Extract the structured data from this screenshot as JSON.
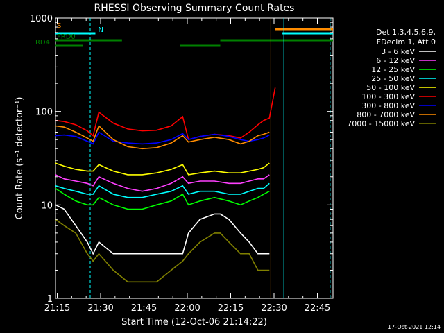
{
  "chart_data": {
    "type": "line",
    "title": "RHESSI Observing Summary Count Rates",
    "xlabel": "Start Time (12-Oct-06 21:14:22)",
    "ylabel": "Count Rate (s⁻¹ detector⁻¹)",
    "x_unit": "minutes after 21:14:22",
    "xlim": [
      0,
      96
    ],
    "ylim": [
      1,
      1000
    ],
    "y_scale": "log",
    "grid": false,
    "legend_position": "right",
    "x_ticks": [
      {
        "label": "21:15",
        "value": 0.6
      },
      {
        "label": "21:30",
        "value": 15.6
      },
      {
        "label": "21:45",
        "value": 30.6
      },
      {
        "label": "22:00",
        "value": 45.6
      },
      {
        "label": "22:15",
        "value": 60.6
      },
      {
        "label": "22:30",
        "value": 75.6
      },
      {
        "label": "22:45",
        "value": 90.6
      }
    ],
    "y_ticks": [
      {
        "label": "1",
        "value": 1
      },
      {
        "label": "10",
        "value": 10
      },
      {
        "label": "100",
        "value": 100
      },
      {
        "label": "1000",
        "value": 1000
      }
    ],
    "legend_header": [
      "Det 1,3,4,5,6,9,",
      "FDecim 1, Att 0"
    ],
    "series": [
      {
        "name": "3 - 6 keV",
        "color": "#ffffff",
        "points": [
          [
            0,
            10
          ],
          [
            3,
            9
          ],
          [
            7,
            6
          ],
          [
            11,
            4
          ],
          [
            13,
            3
          ],
          [
            15,
            4
          ],
          [
            20,
            3
          ],
          [
            25,
            3
          ],
          [
            30,
            3
          ],
          [
            35,
            3
          ],
          [
            40,
            3
          ],
          [
            44,
            3
          ],
          [
            46,
            5
          ],
          [
            50,
            7
          ],
          [
            55,
            8
          ],
          [
            57,
            8
          ],
          [
            60,
            7
          ],
          [
            64,
            5
          ],
          [
            67,
            4
          ],
          [
            70,
            3
          ],
          [
            72,
            3
          ],
          [
            74,
            3
          ]
        ]
      },
      {
        "name": "6 - 12 keV",
        "color": "#ff40ff",
        "points": [
          [
            0,
            21
          ],
          [
            3,
            19
          ],
          [
            7,
            18
          ],
          [
            11,
            17
          ],
          [
            13,
            16
          ],
          [
            15,
            20
          ],
          [
            20,
            17
          ],
          [
            25,
            15
          ],
          [
            30,
            14
          ],
          [
            35,
            15
          ],
          [
            40,
            17
          ],
          [
            44,
            20
          ],
          [
            46,
            17
          ],
          [
            50,
            18
          ],
          [
            55,
            18
          ],
          [
            60,
            17
          ],
          [
            64,
            17
          ],
          [
            67,
            18
          ],
          [
            70,
            19
          ],
          [
            72,
            19
          ],
          [
            74,
            21
          ]
        ]
      },
      {
        "name": "12 - 25 keV",
        "color": "#00ff00",
        "points": [
          [
            0,
            15
          ],
          [
            3,
            13
          ],
          [
            7,
            11
          ],
          [
            11,
            10
          ],
          [
            13,
            10
          ],
          [
            15,
            12
          ],
          [
            20,
            10
          ],
          [
            25,
            9
          ],
          [
            30,
            9
          ],
          [
            35,
            10
          ],
          [
            40,
            11
          ],
          [
            44,
            13
          ],
          [
            46,
            10
          ],
          [
            50,
            11
          ],
          [
            55,
            12
          ],
          [
            60,
            11
          ],
          [
            64,
            10
          ],
          [
            67,
            11
          ],
          [
            70,
            12
          ],
          [
            72,
            13
          ],
          [
            74,
            14
          ]
        ]
      },
      {
        "name": "25 - 50 keV",
        "color": "#00ffff",
        "points": [
          [
            0,
            16
          ],
          [
            3,
            15
          ],
          [
            7,
            14
          ],
          [
            11,
            13
          ],
          [
            13,
            13
          ],
          [
            15,
            16
          ],
          [
            20,
            13
          ],
          [
            25,
            12
          ],
          [
            30,
            12
          ],
          [
            35,
            13
          ],
          [
            40,
            14
          ],
          [
            44,
            16
          ],
          [
            46,
            13
          ],
          [
            50,
            14
          ],
          [
            55,
            14
          ],
          [
            60,
            13
          ],
          [
            64,
            13
          ],
          [
            67,
            14
          ],
          [
            70,
            15
          ],
          [
            72,
            15
          ],
          [
            74,
            17
          ]
        ]
      },
      {
        "name": "50 - 100 keV",
        "color": "#ffff00",
        "points": [
          [
            0,
            28
          ],
          [
            3,
            26
          ],
          [
            7,
            24
          ],
          [
            11,
            23
          ],
          [
            13,
            23
          ],
          [
            15,
            27
          ],
          [
            20,
            23
          ],
          [
            25,
            21
          ],
          [
            30,
            21
          ],
          [
            35,
            22
          ],
          [
            40,
            24
          ],
          [
            44,
            27
          ],
          [
            46,
            21
          ],
          [
            50,
            22
          ],
          [
            55,
            23
          ],
          [
            60,
            22
          ],
          [
            64,
            22
          ],
          [
            67,
            23
          ],
          [
            70,
            24
          ],
          [
            72,
            25
          ],
          [
            74,
            28
          ]
        ]
      },
      {
        "name": "100 - 300 keV",
        "color": "#ff0000",
        "points": [
          [
            0,
            80
          ],
          [
            3,
            78
          ],
          [
            7,
            72
          ],
          [
            11,
            62
          ],
          [
            13,
            55
          ],
          [
            15,
            98
          ],
          [
            20,
            75
          ],
          [
            25,
            65
          ],
          [
            30,
            62
          ],
          [
            35,
            63
          ],
          [
            40,
            70
          ],
          [
            44,
            88
          ],
          [
            46,
            50
          ],
          [
            50,
            54
          ],
          [
            55,
            57
          ],
          [
            60,
            55
          ],
          [
            64,
            52
          ],
          [
            67,
            60
          ],
          [
            70,
            72
          ],
          [
            72,
            80
          ],
          [
            74,
            85
          ],
          [
            76,
            180
          ]
        ]
      },
      {
        "name": "300 - 800 keV",
        "color": "#0000ff",
        "points": [
          [
            0,
            55
          ],
          [
            3,
            56
          ],
          [
            7,
            54
          ],
          [
            11,
            48
          ],
          [
            13,
            45
          ],
          [
            15,
            60
          ],
          [
            20,
            48
          ],
          [
            25,
            46
          ],
          [
            30,
            45
          ],
          [
            35,
            46
          ],
          [
            40,
            50
          ],
          [
            44,
            58
          ],
          [
            46,
            50
          ],
          [
            50,
            54
          ],
          [
            55,
            57
          ],
          [
            60,
            54
          ],
          [
            64,
            50
          ],
          [
            67,
            48
          ],
          [
            70,
            50
          ],
          [
            72,
            52
          ],
          [
            74,
            56
          ]
        ]
      },
      {
        "name": "800 - 7000 keV",
        "color": "#ff8c00",
        "points": [
          [
            0,
            70
          ],
          [
            3,
            68
          ],
          [
            7,
            60
          ],
          [
            11,
            52
          ],
          [
            13,
            48
          ],
          [
            15,
            70
          ],
          [
            20,
            50
          ],
          [
            25,
            42
          ],
          [
            30,
            40
          ],
          [
            35,
            41
          ],
          [
            40,
            46
          ],
          [
            44,
            55
          ],
          [
            46,
            47
          ],
          [
            50,
            50
          ],
          [
            55,
            53
          ],
          [
            60,
            50
          ],
          [
            64,
            45
          ],
          [
            67,
            48
          ],
          [
            70,
            55
          ],
          [
            72,
            57
          ],
          [
            74,
            60
          ]
        ]
      },
      {
        "name": "7000 - 15000 keV",
        "color": "#808000",
        "points": [
          [
            0,
            7
          ],
          [
            3,
            6
          ],
          [
            7,
            5
          ],
          [
            11,
            3
          ],
          [
            13,
            2.5
          ],
          [
            15,
            3
          ],
          [
            20,
            2
          ],
          [
            25,
            1.5
          ],
          [
            30,
            1.5
          ],
          [
            35,
            1.5
          ],
          [
            40,
            2
          ],
          [
            44,
            2.5
          ],
          [
            46,
            3
          ],
          [
            50,
            4
          ],
          [
            55,
            5
          ],
          [
            57,
            5
          ],
          [
            60,
            4
          ],
          [
            64,
            3
          ],
          [
            67,
            3
          ],
          [
            70,
            2
          ],
          [
            72,
            2
          ],
          [
            74,
            2
          ]
        ]
      }
    ],
    "flags": [
      {
        "name": "SAA",
        "label": "S",
        "color": "#ff8c00",
        "intervals": [
          [
            76,
            96
          ]
        ]
      },
      {
        "name": "Night",
        "label": "N",
        "color": "#00ffff",
        "intervals": [
          [
            0,
            13.8
          ],
          [
            78.5,
            96
          ]
        ]
      },
      {
        "name": "RD0",
        "label": "FRD0",
        "color": "#008000",
        "intervals": [
          [
            0,
            23
          ],
          [
            57,
            96
          ]
        ]
      },
      {
        "name": "RD4",
        "label": "RD4",
        "color": "#008000",
        "intervals": [
          [
            0,
            9.5
          ],
          [
            43,
            57
          ]
        ]
      }
    ],
    "vertical_markers": [
      {
        "x": 12,
        "color": "#00ffff",
        "style": "dashed"
      },
      {
        "x": 74.5,
        "color": "#ff8c00",
        "style": "solid"
      },
      {
        "x": 79,
        "color": "#00ffff",
        "style": "solid"
      },
      {
        "x": 95,
        "color": "#00ffff",
        "style": "dashed"
      }
    ]
  },
  "timestamp": "17-Oct-2021 12:14"
}
